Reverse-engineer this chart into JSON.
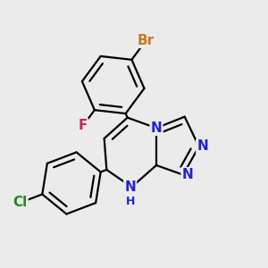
{
  "bg_color": "#ebebeb",
  "bond_color": "#000000",
  "bond_width": 1.6,
  "atom_labels": {
    "Br": {
      "color": "#c87820",
      "fontsize": 11,
      "fontweight": "bold"
    },
    "F": {
      "color": "#cc2266",
      "fontsize": 11,
      "fontweight": "bold"
    },
    "Cl": {
      "color": "#228822",
      "fontsize": 11,
      "fontweight": "bold"
    },
    "N": {
      "color": "#2222cc",
      "fontsize": 11,
      "fontweight": "bold"
    },
    "H": {
      "color": "#2222cc",
      "fontsize": 9,
      "fontweight": "bold"
    }
  },
  "fig_width": 3.0,
  "fig_height": 3.0,
  "dpi": 100
}
